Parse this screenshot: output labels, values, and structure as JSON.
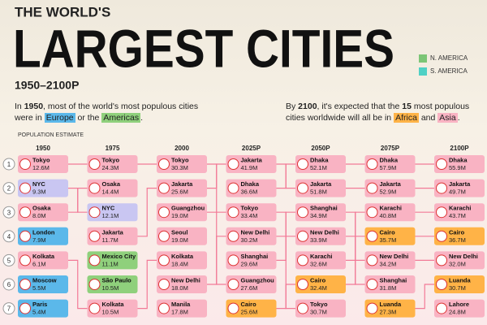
{
  "header": {
    "kicker": "THE WORLD'S",
    "title": "LARGEST CITIES",
    "years": "1950–2100P"
  },
  "legend": {
    "items": [
      {
        "label": "N. AMERICA",
        "color": "#7cc576"
      },
      {
        "label": "S. AMERICA",
        "color": "#4fd1c5"
      }
    ]
  },
  "intro": {
    "left": [
      "In ",
      "1950",
      ", most of the world's most populous cities were in ",
      "Europe",
      " or the ",
      "Americas",
      "."
    ],
    "right": [
      "By ",
      "2100",
      ", it's expected that the ",
      "15",
      " most populous cities worldwide will all be in ",
      "Africa",
      " and ",
      "Asia",
      "."
    ]
  },
  "axis_label": "POPULATION ESTIMATE",
  "ranks": [
    1,
    2,
    3,
    4,
    5,
    6,
    7
  ],
  "columns": [
    {
      "year": "1950",
      "entries": [
        {
          "city": "Tokyo",
          "pop": "12.6M",
          "color": "#f9b3c3"
        },
        {
          "city": "NYC",
          "pop": "9.3M",
          "color": "#c9c6f2"
        },
        {
          "city": "Osaka",
          "pop": "8.0M",
          "color": "#f9b3c3"
        },
        {
          "city": "London",
          "pop": "7.9M",
          "color": "#5bb8ea"
        },
        {
          "city": "Kolkata",
          "pop": "6.1M",
          "color": "#f9b3c3"
        },
        {
          "city": "Moscow",
          "pop": "5.5M",
          "color": "#5bb8ea"
        },
        {
          "city": "Paris",
          "pop": "5.4M",
          "color": "#5bb8ea"
        }
      ]
    },
    {
      "year": "1975",
      "entries": [
        {
          "city": "Tokyo",
          "pop": "24.3M",
          "color": "#f9b3c3"
        },
        {
          "city": "Osaka",
          "pop": "14.4M",
          "color": "#f9b3c3"
        },
        {
          "city": "NYC",
          "pop": "12.1M",
          "color": "#c9c6f2"
        },
        {
          "city": "Jakarta",
          "pop": "11.7M",
          "color": "#f9b3c3"
        },
        {
          "city": "Mexico City",
          "pop": "11.1M",
          "color": "#8fd07c"
        },
        {
          "city": "São Paulo",
          "pop": "10.5M",
          "color": "#8fd07c"
        },
        {
          "city": "Kolkata",
          "pop": "10.5M",
          "color": "#f9b3c3"
        }
      ]
    },
    {
      "year": "2000",
      "entries": [
        {
          "city": "Tokyo",
          "pop": "30.3M",
          "color": "#f9b3c3"
        },
        {
          "city": "Jakarta",
          "pop": "25.6M",
          "color": "#f9b3c3"
        },
        {
          "city": "Guangzhou",
          "pop": "19.0M",
          "color": "#f9b3c3"
        },
        {
          "city": "Seoul",
          "pop": "19.0M",
          "color": "#f9b3c3"
        },
        {
          "city": "Kolkata",
          "pop": "18.4M",
          "color": "#f9b3c3"
        },
        {
          "city": "New Delhi",
          "pop": "18.0M",
          "color": "#f9b3c3"
        },
        {
          "city": "Manila",
          "pop": "17.8M",
          "color": "#f9b3c3"
        }
      ]
    },
    {
      "year": "2025P",
      "entries": [
        {
          "city": "Jakarta",
          "pop": "41.9M",
          "color": "#f9b3c3"
        },
        {
          "city": "Dhaka",
          "pop": "36.6M",
          "color": "#f9b3c3"
        },
        {
          "city": "Tokyo",
          "pop": "33.4M",
          "color": "#f9b3c3"
        },
        {
          "city": "New Delhi",
          "pop": "30.2M",
          "color": "#f9b3c3"
        },
        {
          "city": "Shanghai",
          "pop": "29.6M",
          "color": "#f9b3c3"
        },
        {
          "city": "Guangzhou",
          "pop": "27.6M",
          "color": "#f9b3c3"
        },
        {
          "city": "Cairo",
          "pop": "25.6M",
          "color": "#ffb347"
        }
      ]
    },
    {
      "year": "2050P",
      "entries": [
        {
          "city": "Dhaka",
          "pop": "52.1M",
          "color": "#f9b3c3"
        },
        {
          "city": "Jakarta",
          "pop": "51.8M",
          "color": "#f9b3c3"
        },
        {
          "city": "Shanghai",
          "pop": "34.9M",
          "color": "#f9b3c3"
        },
        {
          "city": "New Delhi",
          "pop": "33.9M",
          "color": "#f9b3c3"
        },
        {
          "city": "Karachi",
          "pop": "32.6M",
          "color": "#f9b3c3"
        },
        {
          "city": "Cairo",
          "pop": "32.4M",
          "color": "#ffb347"
        },
        {
          "city": "Tokyo",
          "pop": "30.7M",
          "color": "#f9b3c3"
        }
      ]
    },
    {
      "year": "2075P",
      "entries": [
        {
          "city": "Dhaka",
          "pop": "57.9M",
          "color": "#f9b3c3"
        },
        {
          "city": "Jakarta",
          "pop": "52.9M",
          "color": "#f9b3c3"
        },
        {
          "city": "Karachi",
          "pop": "40.8M",
          "color": "#f9b3c3"
        },
        {
          "city": "Cairo",
          "pop": "35.7M",
          "color": "#ffb347"
        },
        {
          "city": "New Delhi",
          "pop": "34.2M",
          "color": "#f9b3c3"
        },
        {
          "city": "Shanghai",
          "pop": "31.8M",
          "color": "#f9b3c3"
        },
        {
          "city": "Luanda",
          "pop": "27.3M",
          "color": "#ffb347"
        }
      ]
    },
    {
      "year": "2100P",
      "entries": [
        {
          "city": "Dhaka",
          "pop": "55.9M",
          "color": "#f9b3c3"
        },
        {
          "city": "Jakarta",
          "pop": "49.7M",
          "color": "#f9b3c3"
        },
        {
          "city": "Karachi",
          "pop": "43.7M",
          "color": "#f9b3c3"
        },
        {
          "city": "Cairo",
          "pop": "36.7M",
          "color": "#ffb347"
        },
        {
          "city": "New Delhi",
          "pop": "32.0M",
          "color": "#f9b3c3"
        },
        {
          "city": "Luanda",
          "pop": "30.7M",
          "color": "#ffb347"
        },
        {
          "city": "Lahore",
          "pop": "24.8M",
          "color": "#f9b3c3"
        }
      ]
    }
  ]
}
